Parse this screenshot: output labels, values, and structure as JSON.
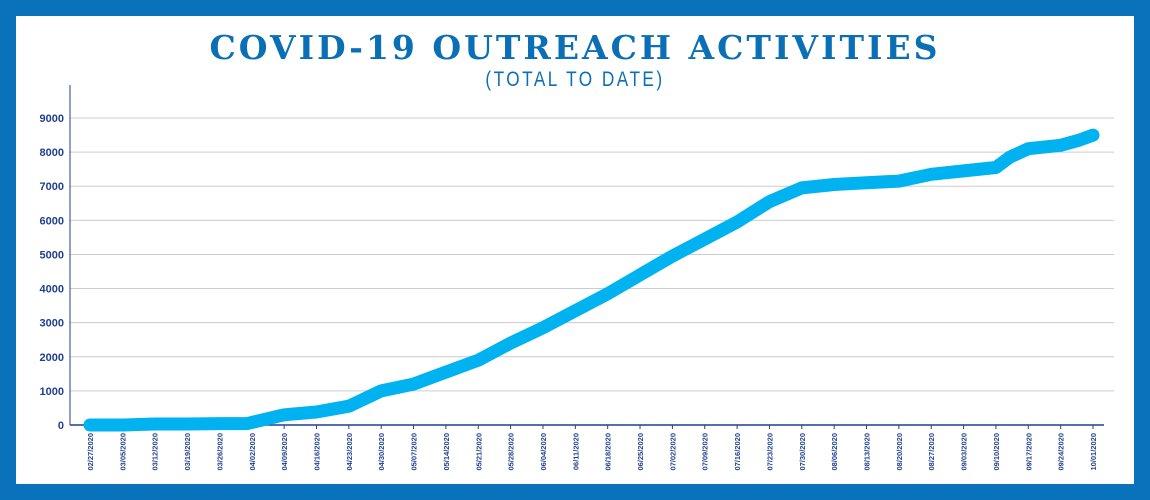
{
  "chart_data": {
    "type": "line",
    "title": "COVID-19 OUTREACH ACTIVITIES",
    "subtitle": "(TOTAL TO DATE)",
    "xlabel": "",
    "ylabel": "",
    "ylim": [
      0,
      10000
    ],
    "yticks": [
      0,
      1000,
      2000,
      3000,
      4000,
      5000,
      6000,
      7000,
      8000,
      9000
    ],
    "grid": true,
    "legend": "none",
    "x": [
      "02/27/2020",
      "03/05/2020",
      "03/12/2020",
      "03/19/2020",
      "03/26/2020",
      "04/02/2020",
      "04/09/2020",
      "04/16/2020",
      "04/23/2020",
      "04/30/2020",
      "05/07/2020",
      "05/14/2020",
      "05/21/2020",
      "05/28/2020",
      "06/04/2020",
      "06/11/2020",
      "06/18/2020",
      "06/25/2020",
      "07/02/2020",
      "07/09/2020",
      "07/16/2020",
      "07/23/2020",
      "07/30/2020",
      "08/06/2020",
      "08/13/2020",
      "08/20/2020",
      "08/27/2020",
      "09/03/2020",
      "09/10/2020",
      "09/17/2020",
      "09/24/2020",
      "10/01/2020"
    ],
    "series": [
      {
        "name": "",
        "points": [
          [
            "02/27/2020",
            0
          ],
          [
            "03/05/2020",
            0
          ],
          [
            "03/12/2020",
            30
          ],
          [
            "03/19/2020",
            30
          ],
          [
            "03/26/2020",
            40
          ],
          [
            "04/01/2020",
            40
          ],
          [
            "04/09/2020",
            300
          ],
          [
            "04/16/2020",
            380
          ],
          [
            "04/23/2020",
            550
          ],
          [
            "04/30/2020",
            1000
          ],
          [
            "05/07/2020",
            1200
          ],
          [
            "05/14/2020",
            1550
          ],
          [
            "05/21/2020",
            1900
          ],
          [
            "05/28/2020",
            2400
          ],
          [
            "06/04/2020",
            2850
          ],
          [
            "06/11/2020",
            3350
          ],
          [
            "06/18/2020",
            3850
          ],
          [
            "06/25/2020",
            4400
          ],
          [
            "07/02/2020",
            4950
          ],
          [
            "07/09/2020",
            5450
          ],
          [
            "07/16/2020",
            5950
          ],
          [
            "07/23/2020",
            6550
          ],
          [
            "07/30/2020",
            6950
          ],
          [
            "08/06/2020",
            7050
          ],
          [
            "08/13/2020",
            7100
          ],
          [
            "08/20/2020",
            7150
          ],
          [
            "08/27/2020",
            7350
          ],
          [
            "09/03/2020",
            7450
          ],
          [
            "09/10/2020",
            7550
          ],
          [
            "09/13/2020",
            7850
          ],
          [
            "09/17/2020",
            8100
          ],
          [
            "09/24/2020",
            8200
          ],
          [
            "09/28/2020",
            8350
          ],
          [
            "10/01/2020",
            8500
          ]
        ]
      }
    ]
  },
  "colors": {
    "frame": "#0a72bb",
    "background": "#ffffff",
    "line": "#00b3f0",
    "title": "#0b6fb6",
    "axis": "#1f3f8f",
    "grid": "#c9ccd3"
  }
}
